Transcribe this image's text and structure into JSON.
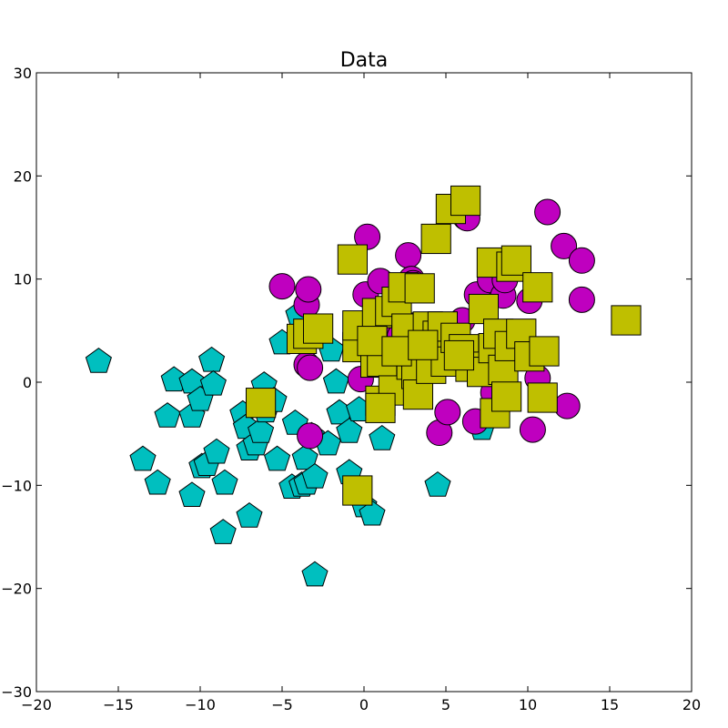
{
  "chart_data": {
    "type": "scatter",
    "title": "Data",
    "xlabel": "",
    "ylabel": "",
    "xlim": [
      -20,
      20
    ],
    "ylim": [
      -30,
      30
    ],
    "xticks": [
      -20,
      -15,
      -10,
      -5,
      0,
      5,
      10,
      15,
      20
    ],
    "yticks": [
      -30,
      -20,
      -10,
      0,
      10,
      20,
      30
    ],
    "xtick_labels": [
      "−20",
      "−15",
      "−10",
      "−5",
      "0",
      "5",
      "10",
      "15",
      "20"
    ],
    "ytick_labels": [
      "−30",
      "−20",
      "−10",
      "0",
      "10",
      "20",
      "30"
    ],
    "grid": false,
    "series": [
      {
        "marker": "pentagon",
        "color": "#00bfbf",
        "points": [
          [
            -16.2,
            2.0
          ],
          [
            -13.5,
            -7.5
          ],
          [
            -12.6,
            -9.8
          ],
          [
            -12.0,
            -3.3
          ],
          [
            -11.6,
            0.2
          ],
          [
            -10.5,
            0.0
          ],
          [
            -10.5,
            -3.3
          ],
          [
            -10.5,
            -11.0
          ],
          [
            -10.0,
            -1.7
          ],
          [
            -9.9,
            -8.2
          ],
          [
            -9.6,
            -8.0
          ],
          [
            -9.3,
            2.1
          ],
          [
            -9.2,
            -0.2
          ],
          [
            -9.0,
            -6.8
          ],
          [
            -8.5,
            -9.8
          ],
          [
            -8.6,
            -14.6
          ],
          [
            -7.4,
            -3.1
          ],
          [
            -7.2,
            -4.4
          ],
          [
            -7.0,
            -13.0
          ],
          [
            -7.0,
            -6.5
          ],
          [
            -6.6,
            -6.0
          ],
          [
            -6.3,
            -4.8
          ],
          [
            -6.1,
            -0.3
          ],
          [
            -6.0,
            -2.8
          ],
          [
            -5.5,
            -1.8
          ],
          [
            -5.3,
            -7.5
          ],
          [
            -5.0,
            3.8
          ],
          [
            -4.4,
            -10.2
          ],
          [
            -4.2,
            -4.0
          ],
          [
            -4.0,
            6.5
          ],
          [
            -3.8,
            -10.0
          ],
          [
            -3.5,
            -9.8
          ],
          [
            -3.6,
            -7.4
          ],
          [
            -3.2,
            -5.2
          ],
          [
            -3.0,
            -9.2
          ],
          [
            -3.0,
            -18.7
          ],
          [
            -2.2,
            -6.0
          ],
          [
            -2.0,
            3.1
          ],
          [
            -1.7,
            0.0
          ],
          [
            -1.5,
            -3.0
          ],
          [
            -0.9,
            -8.8
          ],
          [
            -0.9,
            -4.8
          ],
          [
            -0.3,
            -2.7
          ],
          [
            0.0,
            -12.0
          ],
          [
            0.5,
            -12.8
          ],
          [
            1.1,
            -5.5
          ],
          [
            4.5,
            -10.0
          ],
          [
            7.2,
            -4.5
          ]
        ]
      },
      {
        "marker": "circle",
        "color": "#bf00bf",
        "points": [
          [
            -5.0,
            9.3
          ],
          [
            -3.5,
            7.5
          ],
          [
            -3.4,
            9.0
          ],
          [
            -3.5,
            1.7
          ],
          [
            -3.3,
            1.4
          ],
          [
            -3.3,
            -5.2
          ],
          [
            -0.2,
            0.3
          ],
          [
            0.1,
            8.5
          ],
          [
            0.2,
            14.1
          ],
          [
            1.0,
            9.8
          ],
          [
            1.2,
            4.6
          ],
          [
            2.2,
            4.5
          ],
          [
            2.7,
            12.3
          ],
          [
            2.9,
            10.0
          ],
          [
            3.0,
            9.6
          ],
          [
            3.1,
            5.5
          ],
          [
            4.6,
            -4.9
          ],
          [
            5.1,
            -2.9
          ],
          [
            4.9,
            3.7
          ],
          [
            5.5,
            4.6
          ],
          [
            6.2,
            16.0
          ],
          [
            6.3,
            15.9
          ],
          [
            6.9,
            8.5
          ],
          [
            6.8,
            -3.8
          ],
          [
            7.5,
            3.2
          ],
          [
            7.7,
            9.9
          ],
          [
            7.9,
            -1.0
          ],
          [
            8.1,
            3.1
          ],
          [
            8.5,
            8.4
          ],
          [
            8.6,
            9.9
          ],
          [
            8.8,
            11.7
          ],
          [
            9.1,
            2.3
          ],
          [
            10.1,
            7.9
          ],
          [
            10.6,
            0.4
          ],
          [
            10.3,
            -4.6
          ],
          [
            11.2,
            16.5
          ],
          [
            12.2,
            13.2
          ],
          [
            12.4,
            -2.3
          ],
          [
            13.3,
            11.8
          ],
          [
            13.3,
            8.0
          ],
          [
            2.5,
            2.5
          ],
          [
            3.8,
            1.0
          ],
          [
            6.0,
            6.0
          ],
          [
            9.5,
            4.5
          ],
          [
            1.8,
            -0.5
          ]
        ]
      },
      {
        "marker": "square",
        "color": "#bfbf00",
        "points": [
          [
            -6.3,
            -2.0
          ],
          [
            -3.8,
            4.2
          ],
          [
            -3.4,
            4.7
          ],
          [
            -2.8,
            5.2
          ],
          [
            -0.7,
            11.9
          ],
          [
            -0.4,
            3.4
          ],
          [
            -0.4,
            5.5
          ],
          [
            -0.4,
            -10.5
          ],
          [
            0.7,
            1.9
          ],
          [
            0.8,
            6.7
          ],
          [
            1.0,
            -1.8
          ],
          [
            1.1,
            2.0
          ],
          [
            1.6,
            6.9
          ],
          [
            1.8,
            -0.8
          ],
          [
            2.0,
            7.8
          ],
          [
            2.4,
            9.2
          ],
          [
            2.6,
            5.2
          ],
          [
            2.9,
            1.7
          ],
          [
            3.2,
            0.8
          ],
          [
            3.3,
            -1.2
          ],
          [
            3.4,
            9.1
          ],
          [
            3.9,
            5.4
          ],
          [
            4.1,
            1.3
          ],
          [
            4.4,
            13.9
          ],
          [
            4.5,
            4.5
          ],
          [
            4.8,
            5.4
          ],
          [
            5.0,
            2.0
          ],
          [
            5.3,
            16.8
          ],
          [
            5.6,
            4.3
          ],
          [
            6.1,
            3.2
          ],
          [
            6.2,
            17.6
          ],
          [
            6.5,
            1.5
          ],
          [
            7.2,
            1.0
          ],
          [
            7.3,
            7.1
          ],
          [
            7.8,
            11.6
          ],
          [
            7.9,
            3.3
          ],
          [
            8.0,
            -3.0
          ],
          [
            8.2,
            4.7
          ],
          [
            8.5,
            1.2
          ],
          [
            8.7,
            -1.4
          ],
          [
            8.9,
            3.5
          ],
          [
            9.0,
            11.2
          ],
          [
            9.3,
            11.8
          ],
          [
            9.6,
            4.7
          ],
          [
            10.1,
            2.5
          ],
          [
            10.6,
            9.2
          ],
          [
            10.9,
            -1.5
          ],
          [
            11.0,
            3.0
          ],
          [
            16.0,
            6.0
          ],
          [
            0.5,
            4.0
          ],
          [
            2.0,
            3.0
          ],
          [
            1.0,
            -2.5
          ],
          [
            3.6,
            3.6
          ],
          [
            5.8,
            2.6
          ]
        ]
      }
    ]
  }
}
